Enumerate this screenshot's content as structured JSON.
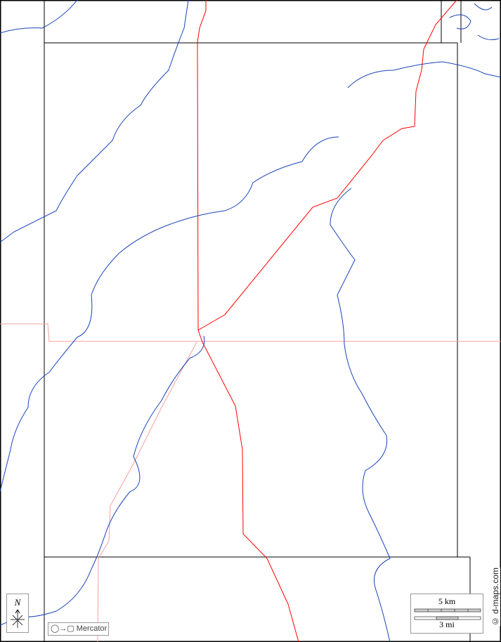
{
  "map": {
    "colors": {
      "rivers": "#1a44b8",
      "roads": "#ff0000",
      "minor_roads": "#f4a0a0",
      "borders": "#000000"
    },
    "north_label": "N",
    "projection_label": "Mercator",
    "scale": {
      "km_label": "5 km",
      "mi_label": "3 mi"
    },
    "credit": "© d-maps.com"
  }
}
